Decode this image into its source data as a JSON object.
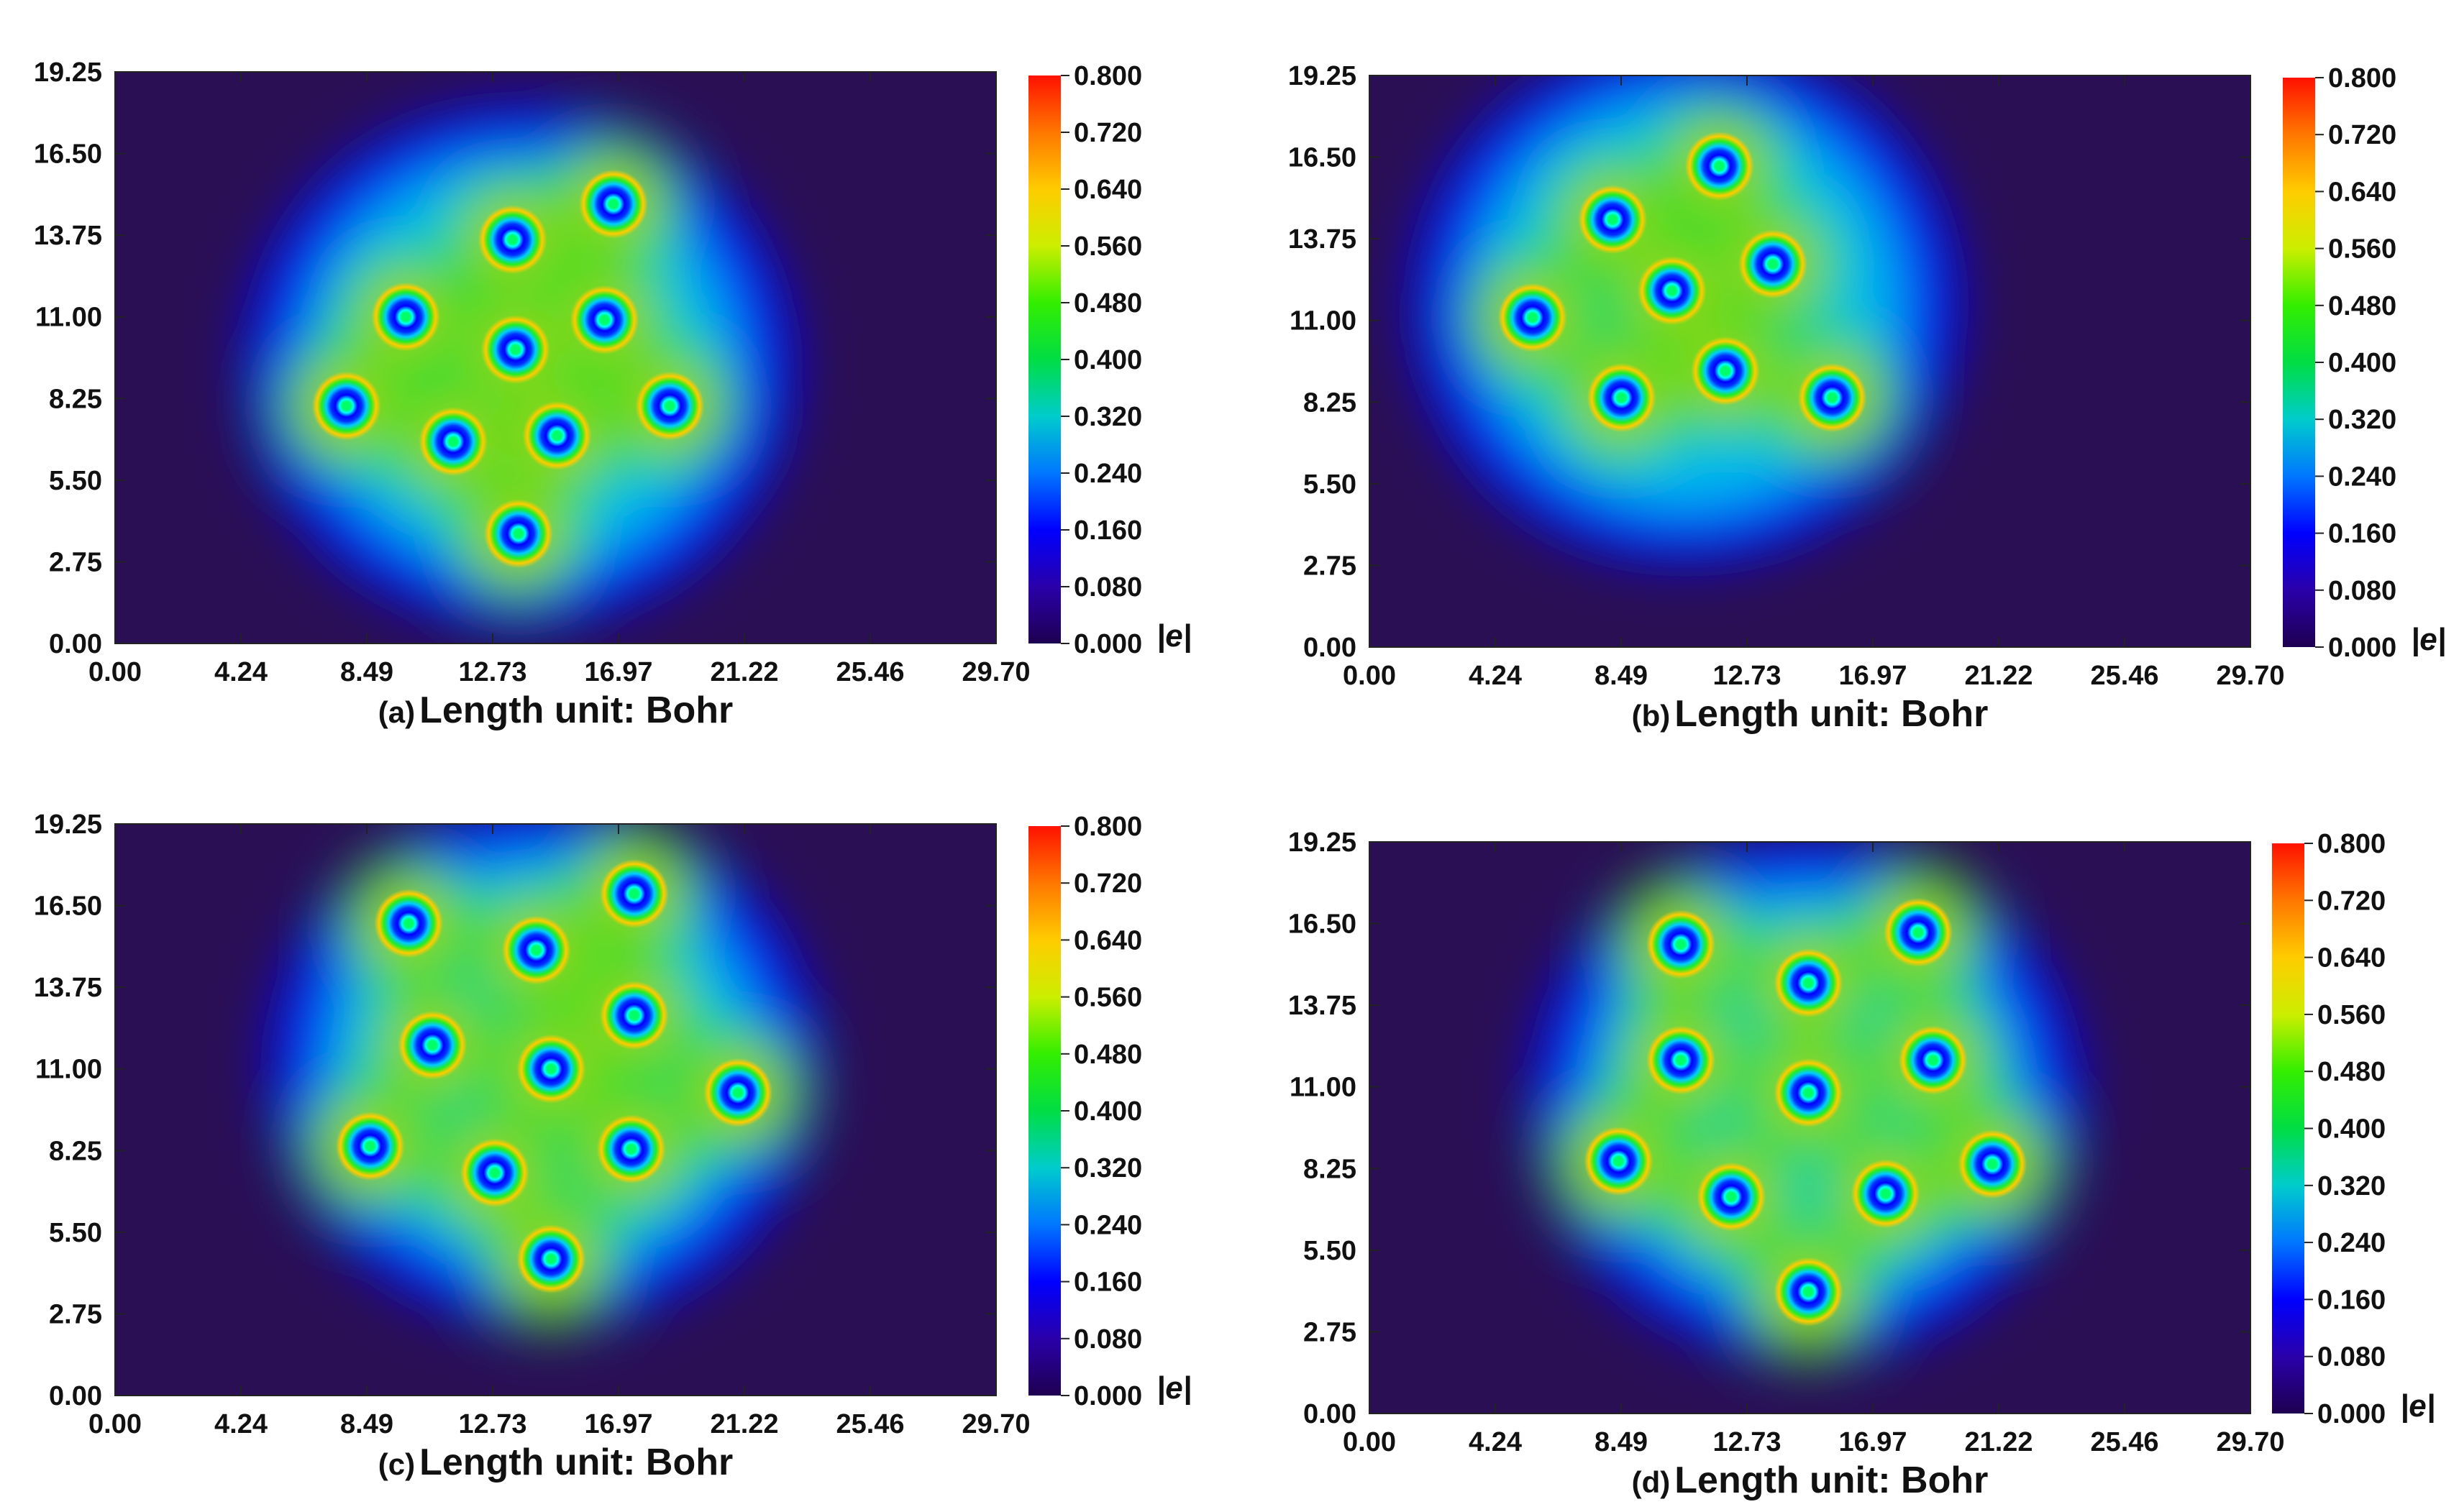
{
  "colorbar": {
    "ticks": [
      "0.800",
      "0.720",
      "0.640",
      "0.560",
      "0.480",
      "0.400",
      "0.320",
      "0.240",
      "0.160",
      "0.080",
      "0.000"
    ],
    "unit": "|e|",
    "range": [
      0,
      0.8
    ]
  },
  "panels": [
    {
      "id": "a",
      "letter": "(a)",
      "caption": "Length unit: Bohr"
    },
    {
      "id": "b",
      "letter": "(b)",
      "caption": "Length unit: Bohr"
    },
    {
      "id": "c",
      "letter": "(c)",
      "caption": "Length unit: Bohr"
    },
    {
      "id": "d",
      "letter": "(d)",
      "caption": "Length unit: Bohr"
    }
  ],
  "chart_data": [
    {
      "type": "heatmap",
      "title": "(a) Length unit: Bohr",
      "xlabel": "Length unit: Bohr",
      "xticks": [
        "0.00",
        "4.24",
        "8.49",
        "12.73",
        "16.97",
        "21.22",
        "25.46",
        "29.70"
      ],
      "yticks": [
        "0.00",
        "2.75",
        "5.50",
        "8.25",
        "11.00",
        "13.75",
        "16.50",
        "19.25"
      ],
      "xlim": [
        0,
        29.7
      ],
      "ylim": [
        0,
        19.25
      ],
      "colorbar_range": [
        0,
        0.8
      ],
      "atoms": [
        [
          7.8,
          8.0
        ],
        [
          11.4,
          6.8
        ],
        [
          13.6,
          3.7
        ],
        [
          18.7,
          8.0
        ],
        [
          16.8,
          14.8
        ],
        [
          16.5,
          10.9
        ],
        [
          13.5,
          9.9
        ],
        [
          9.8,
          11.0
        ],
        [
          14.9,
          7.0
        ],
        [
          13.4,
          13.6
        ]
      ]
    },
    {
      "type": "heatmap",
      "title": "(b) Length unit: Bohr",
      "xlabel": "Length unit: Bohr",
      "xticks": [
        "0.00",
        "4.24",
        "8.49",
        "12.73",
        "16.97",
        "21.22",
        "25.46",
        "29.70"
      ],
      "yticks": [
        "0.00",
        "2.75",
        "5.50",
        "8.25",
        "11.00",
        "13.75",
        "16.50",
        "19.25"
      ],
      "xlim": [
        0,
        29.7
      ],
      "ylim": [
        0,
        19.25
      ],
      "colorbar_range": [
        0,
        0.8
      ],
      "atoms": [
        [
          5.5,
          11.1
        ],
        [
          8.2,
          14.4
        ],
        [
          11.8,
          16.2
        ],
        [
          8.5,
          8.4
        ],
        [
          12.0,
          9.3
        ],
        [
          15.6,
          8.4
        ],
        [
          13.6,
          12.9
        ],
        [
          10.2,
          12.0
        ]
      ]
    },
    {
      "type": "heatmap",
      "title": "(c) Length unit: Bohr",
      "xlabel": "Length unit: Bohr",
      "xticks": [
        "0.00",
        "4.24",
        "8.49",
        "12.73",
        "16.97",
        "21.22",
        "25.46",
        "29.70"
      ],
      "yticks": [
        "0.00",
        "2.75",
        "5.50",
        "8.25",
        "11.00",
        "13.75",
        "16.50",
        "19.25"
      ],
      "xlim": [
        0,
        29.7
      ],
      "ylim": [
        0,
        19.25
      ],
      "colorbar_range": [
        0,
        0.8
      ],
      "atoms": [
        [
          9.9,
          15.9
        ],
        [
          17.5,
          16.9
        ],
        [
          8.6,
          8.4
        ],
        [
          21.0,
          10.2
        ],
        [
          14.7,
          4.6
        ],
        [
          14.7,
          11.0
        ],
        [
          17.4,
          8.3
        ],
        [
          12.8,
          7.5
        ],
        [
          10.7,
          11.8
        ],
        [
          17.5,
          12.8
        ],
        [
          14.2,
          15.0
        ]
      ]
    },
    {
      "type": "heatmap",
      "title": "(d) Length unit: Bohr",
      "xlabel": "Length unit: Bohr",
      "xticks": [
        "0.00",
        "4.24",
        "8.49",
        "12.73",
        "16.97",
        "21.22",
        "25.46",
        "29.70"
      ],
      "yticks": [
        "0.00",
        "2.75",
        "5.50",
        "8.25",
        "11.00",
        "13.75",
        "16.50",
        "19.25"
      ],
      "xlim": [
        0,
        29.7
      ],
      "ylim": [
        0,
        19.25
      ],
      "colorbar_range": [
        0,
        0.8
      ],
      "atoms": [
        [
          10.5,
          15.8
        ],
        [
          18.5,
          16.2
        ],
        [
          8.4,
          8.5
        ],
        [
          21.0,
          8.4
        ],
        [
          14.8,
          4.1
        ],
        [
          14.8,
          10.8
        ],
        [
          14.8,
          14.5
        ],
        [
          10.5,
          11.9
        ],
        [
          19.0,
          11.9
        ],
        [
          12.2,
          7.3
        ],
        [
          17.4,
          7.4
        ]
      ]
    }
  ]
}
